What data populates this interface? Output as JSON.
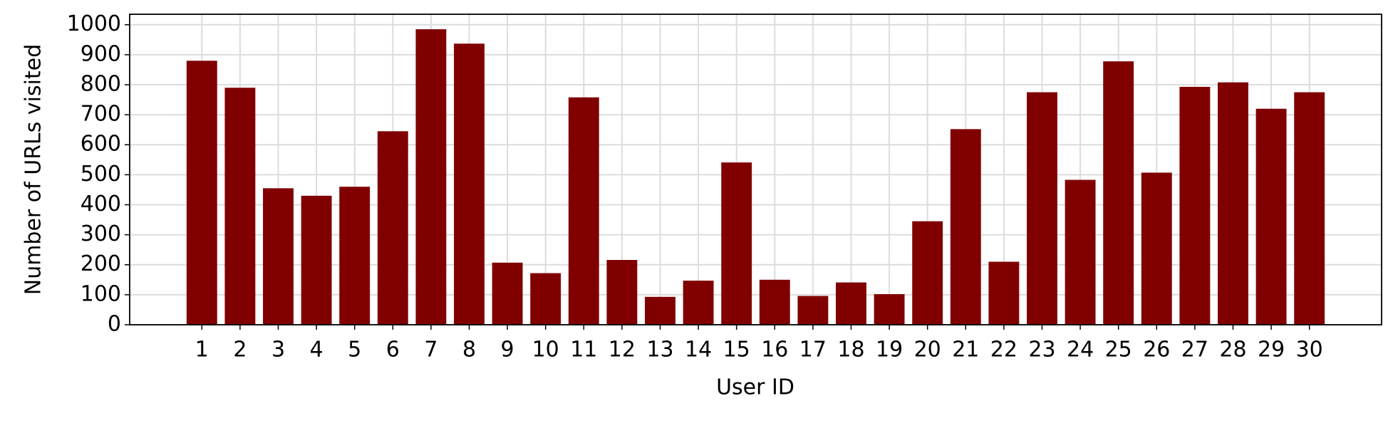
{
  "chart_data": {
    "type": "bar",
    "x_label": "User ID",
    "y_label": "Number of URLs visited",
    "categories": [
      "1",
      "2",
      "3",
      "4",
      "5",
      "6",
      "7",
      "8",
      "9",
      "10",
      "11",
      "12",
      "13",
      "14",
      "15",
      "16",
      "17",
      "18",
      "19",
      "20",
      "21",
      "22",
      "23",
      "24",
      "25",
      "26",
      "27",
      "28",
      "29",
      "30"
    ],
    "values": [
      880,
      790,
      455,
      430,
      460,
      645,
      985,
      937,
      207,
      172,
      758,
      216,
      93,
      147,
      541,
      150,
      96,
      141,
      102,
      345,
      652,
      210,
      775,
      483,
      878,
      507,
      793,
      808,
      720,
      775
    ],
    "color": "#800000",
    "ylim": [
      0,
      1035
    ],
    "yticks": [
      0,
      100,
      200,
      300,
      400,
      500,
      600,
      700,
      800,
      900,
      1000
    ],
    "grid": true
  }
}
